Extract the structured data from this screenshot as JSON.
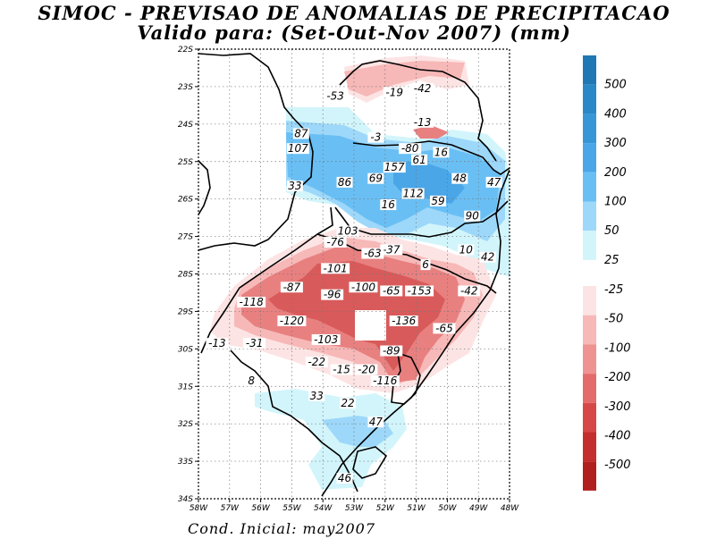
{
  "title": {
    "line1": "SIMOC - PREVISAO DE ANOMALIAS DE PRECIPITACAO",
    "line2": "Valido para: (Set-Out-Nov 2007) (mm)"
  },
  "footer": "Cond. Inicial: may2007",
  "map": {
    "lon_range": [
      -58,
      -48
    ],
    "lat_range": [
      -34,
      -22
    ],
    "lon_ticks": [
      "58W",
      "57W",
      "56W",
      "55W",
      "54W",
      "53W",
      "52W",
      "51W",
      "50W",
      "49W",
      "48W"
    ],
    "lat_ticks": [
      "22S",
      "23S",
      "24S",
      "25S",
      "26S",
      "27S",
      "28S",
      "29S",
      "30S",
      "31S",
      "32S",
      "33S",
      "34S"
    ],
    "contour_labels": [
      {
        "text": "-53",
        "lon": -53.6,
        "lat": -23.3
      },
      {
        "text": "-19",
        "lon": -51.7,
        "lat": -23.2
      },
      {
        "text": "-42",
        "lon": -50.8,
        "lat": -23.1
      },
      {
        "text": "-13",
        "lon": -50.8,
        "lat": -24.0
      },
      {
        "text": "-3",
        "lon": -52.3,
        "lat": -24.4
      },
      {
        "text": "87",
        "lon": -54.7,
        "lat": -24.3
      },
      {
        "text": "-80",
        "lon": -51.2,
        "lat": -24.7
      },
      {
        "text": "107",
        "lon": -54.8,
        "lat": -24.7
      },
      {
        "text": "16",
        "lon": -50.2,
        "lat": -24.8
      },
      {
        "text": "61",
        "lon": -50.9,
        "lat": -25.0
      },
      {
        "text": "157",
        "lon": -51.7,
        "lat": -25.2
      },
      {
        "text": "69",
        "lon": -52.3,
        "lat": -25.5
      },
      {
        "text": "48",
        "lon": -49.6,
        "lat": -25.5
      },
      {
        "text": "47",
        "lon": -48.5,
        "lat": -25.6
      },
      {
        "text": "33",
        "lon": -54.9,
        "lat": -25.7
      },
      {
        "text": "86",
        "lon": -53.3,
        "lat": -25.6
      },
      {
        "text": "112",
        "lon": -51.1,
        "lat": -25.9
      },
      {
        "text": "59",
        "lon": -50.3,
        "lat": -26.1
      },
      {
        "text": "16",
        "lon": -51.9,
        "lat": -26.2
      },
      {
        "text": "90",
        "lon": -49.2,
        "lat": -26.5
      },
      {
        "text": "103",
        "lon": -53.2,
        "lat": -26.9
      },
      {
        "text": "-76",
        "lon": -53.6,
        "lat": -27.2
      },
      {
        "text": "-37",
        "lon": -51.8,
        "lat": -27.4
      },
      {
        "text": "-63",
        "lon": -52.4,
        "lat": -27.5
      },
      {
        "text": "10",
        "lon": -49.4,
        "lat": -27.4
      },
      {
        "text": "42",
        "lon": -48.7,
        "lat": -27.6
      },
      {
        "text": "6",
        "lon": -50.7,
        "lat": -27.8
      },
      {
        "text": "-101",
        "lon": -53.6,
        "lat": -27.9
      },
      {
        "text": "-87",
        "lon": -55.0,
        "lat": -28.4
      },
      {
        "text": "-100",
        "lon": -52.7,
        "lat": -28.4
      },
      {
        "text": "-65",
        "lon": -51.8,
        "lat": -28.5
      },
      {
        "text": "-153",
        "lon": -50.9,
        "lat": -28.5
      },
      {
        "text": "-42",
        "lon": -49.3,
        "lat": -28.5
      },
      {
        "text": "-118",
        "lon": -56.3,
        "lat": -28.8
      },
      {
        "text": "-96",
        "lon": -53.7,
        "lat": -28.6
      },
      {
        "text": "-120",
        "lon": -55.0,
        "lat": -29.3
      },
      {
        "text": "-136",
        "lon": -51.4,
        "lat": -29.3
      },
      {
        "text": "-65",
        "lon": -50.1,
        "lat": -29.5
      },
      {
        "text": "-13",
        "lon": -57.4,
        "lat": -29.9
      },
      {
        "text": "-31",
        "lon": -56.2,
        "lat": -29.9
      },
      {
        "text": "-103",
        "lon": -53.9,
        "lat": -29.8
      },
      {
        "text": "-89",
        "lon": -51.8,
        "lat": -30.1
      },
      {
        "text": "-22",
        "lon": -54.2,
        "lat": -30.4
      },
      {
        "text": "-15",
        "lon": -53.4,
        "lat": -30.6
      },
      {
        "text": "-20",
        "lon": -52.6,
        "lat": -30.6
      },
      {
        "text": "-116",
        "lon": -52.0,
        "lat": -30.9
      },
      {
        "text": "8",
        "lon": -56.3,
        "lat": -30.9
      },
      {
        "text": "33",
        "lon": -54.2,
        "lat": -31.3
      },
      {
        "text": "22",
        "lon": -53.2,
        "lat": -31.5
      },
      {
        "text": "47",
        "lon": -52.3,
        "lat": -32.0
      },
      {
        "text": "46",
        "lon": -53.3,
        "lat": -33.5
      }
    ]
  },
  "colorbar": {
    "positive": [
      {
        "label": "500",
        "color": "#1f78b4"
      },
      {
        "label": "400",
        "color": "#2b88c6"
      },
      {
        "label": "300",
        "color": "#3797d6"
      },
      {
        "label": "200",
        "color": "#4aa6e6"
      },
      {
        "label": "100",
        "color": "#69bff4"
      },
      {
        "label": "50",
        "color": "#9dd8fa"
      },
      {
        "label": "25",
        "color": "#d2f5fb"
      }
    ],
    "negative": [
      {
        "label": "-25",
        "color": "#fde4e4"
      },
      {
        "label": "-50",
        "color": "#f7b8b8"
      },
      {
        "label": "-100",
        "color": "#ef9292"
      },
      {
        "label": "-200",
        "color": "#e46b6b"
      },
      {
        "label": "-300",
        "color": "#d64848"
      },
      {
        "label": "-400",
        "color": "#c52e2e"
      },
      {
        "label": "-500",
        "color": "#b21f1f"
      }
    ]
  },
  "colors": {
    "light_blue": "#d2f5fb",
    "mid_blue": "#9dd8fa",
    "blue": "#69bff4",
    "dark_blue": "#4aa6e6",
    "light_red": "#fde4e4",
    "mid_red": "#f7b8b8",
    "red": "#e88080",
    "dark_red": "#d95a5a"
  }
}
